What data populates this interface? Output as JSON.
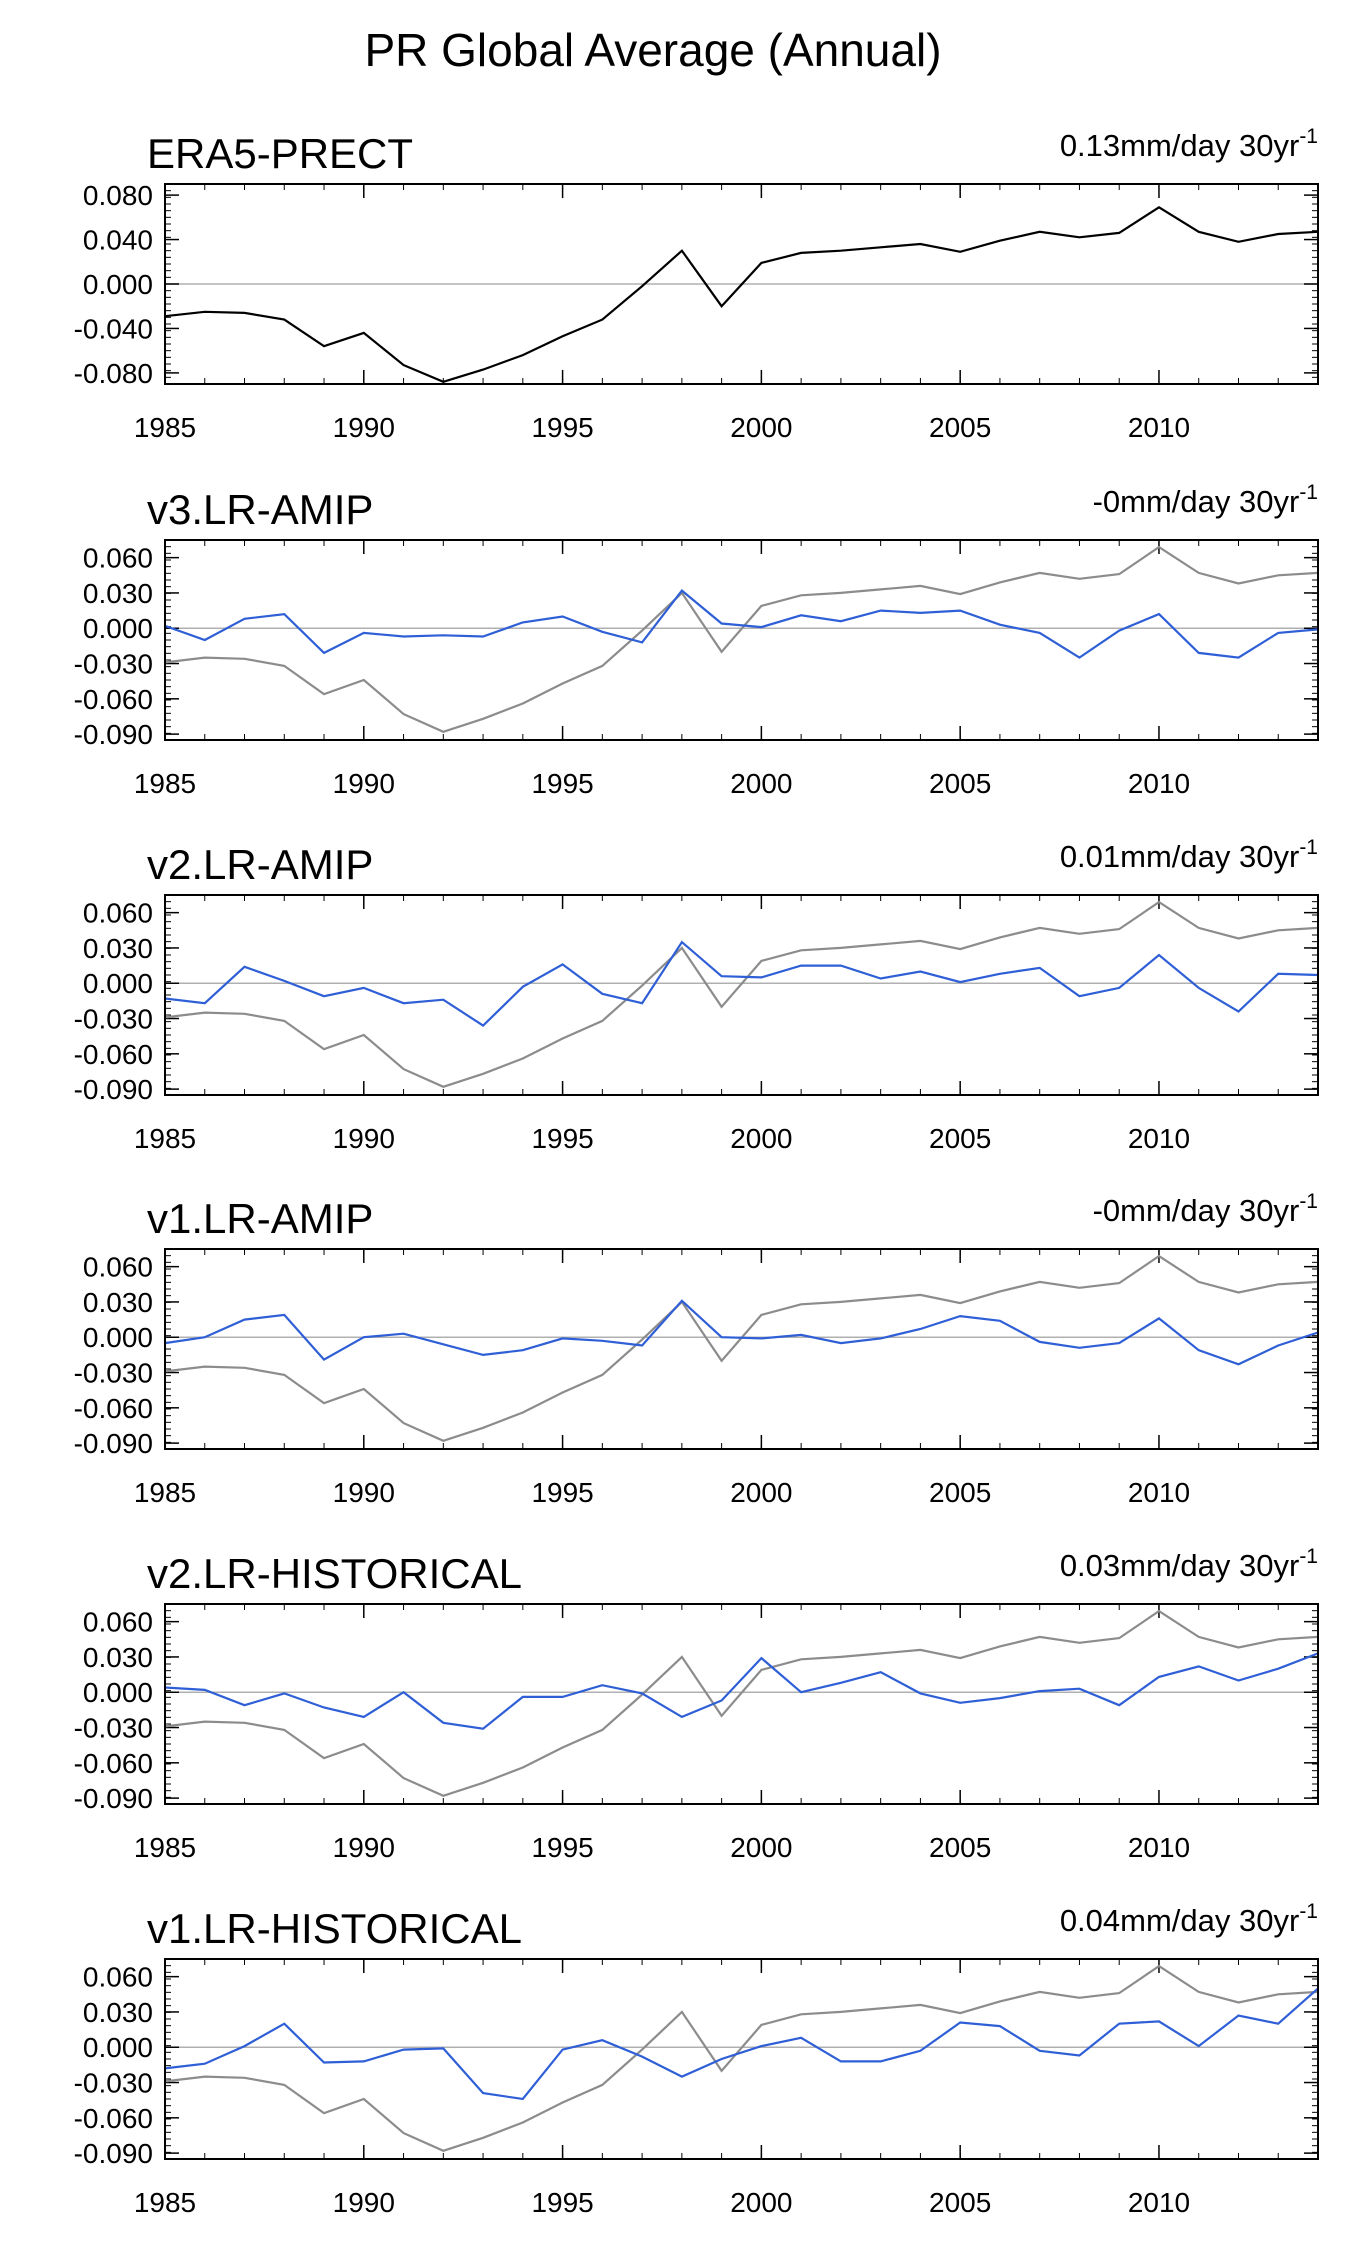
{
  "figure_title": "PR Global Average (Annual)",
  "colors": {
    "reference": "#000000",
    "reference_overlay": "#8c8c8c",
    "model": "#2f5fd6",
    "zero_line": "#b0b0b0"
  },
  "chart_data": [
    {
      "type": "line",
      "title": "ERA5-PRECT",
      "trend_text": "0.13mm/day 30yr",
      "trend_sup": "-1",
      "x": [
        1985,
        1986,
        1987,
        1988,
        1989,
        1990,
        1991,
        1992,
        1993,
        1994,
        1995,
        1996,
        1997,
        1998,
        1999,
        2000,
        2001,
        2002,
        2003,
        2004,
        2005,
        2006,
        2007,
        2008,
        2009,
        2010,
        2011,
        2012,
        2013,
        2014
      ],
      "xlim": [
        1985,
        2014
      ],
      "x_ticks": [
        "1985",
        "1990",
        "1995",
        "2000",
        "2005",
        "2010"
      ],
      "ylim": [
        -0.09,
        0.09
      ],
      "y_ticks": [
        "0.080",
        "0.040",
        "0.000",
        "-0.040",
        "-0.080"
      ],
      "series": [
        {
          "name": "ERA5",
          "role": "reference",
          "values": [
            -0.029,
            -0.025,
            -0.026,
            -0.032,
            -0.056,
            -0.044,
            -0.073,
            -0.088,
            -0.077,
            -0.064,
            -0.047,
            -0.032,
            -0.002,
            0.03,
            -0.02,
            0.019,
            0.028,
            0.03,
            0.033,
            0.036,
            0.029,
            0.039,
            0.047,
            0.042,
            0.046,
            0.069,
            0.047,
            0.038,
            0.045,
            0.047
          ]
        }
      ]
    },
    {
      "type": "line",
      "title": "v3.LR-AMIP",
      "trend_text": "-0mm/day 30yr",
      "trend_sup": "-1",
      "x": [
        1985,
        1986,
        1987,
        1988,
        1989,
        1990,
        1991,
        1992,
        1993,
        1994,
        1995,
        1996,
        1997,
        1998,
        1999,
        2000,
        2001,
        2002,
        2003,
        2004,
        2005,
        2006,
        2007,
        2008,
        2009,
        2010,
        2011,
        2012,
        2013,
        2014
      ],
      "xlim": [
        1985,
        2014
      ],
      "x_ticks": [
        "1985",
        "1990",
        "1995",
        "2000",
        "2005",
        "2010"
      ],
      "ylim": [
        -0.095,
        0.075
      ],
      "y_ticks": [
        "0.060",
        "0.030",
        "0.000",
        "-0.030",
        "-0.060",
        "-0.090"
      ],
      "series": [
        {
          "name": "ERA5",
          "role": "reference",
          "values": [
            -0.029,
            -0.025,
            -0.026,
            -0.032,
            -0.056,
            -0.044,
            -0.073,
            -0.088,
            -0.077,
            -0.064,
            -0.047,
            -0.032,
            -0.002,
            0.03,
            -0.02,
            0.019,
            0.028,
            0.03,
            0.033,
            0.036,
            0.029,
            0.039,
            0.047,
            0.042,
            0.046,
            0.069,
            0.047,
            0.038,
            0.045,
            0.047
          ]
        },
        {
          "name": "v3.LR-AMIP",
          "role": "model",
          "values": [
            0.002,
            -0.01,
            0.008,
            0.012,
            -0.021,
            -0.004,
            -0.007,
            -0.006,
            -0.007,
            0.005,
            0.01,
            -0.003,
            -0.012,
            0.032,
            0.004,
            0.001,
            0.011,
            0.006,
            0.015,
            0.013,
            0.015,
            0.003,
            -0.004,
            -0.025,
            -0.002,
            0.012,
            -0.021,
            -0.025,
            -0.004,
            -0.001
          ]
        }
      ]
    },
    {
      "type": "line",
      "title": "v2.LR-AMIP",
      "trend_text": "0.01mm/day 30yr",
      "trend_sup": "-1",
      "x": [
        1985,
        1986,
        1987,
        1988,
        1989,
        1990,
        1991,
        1992,
        1993,
        1994,
        1995,
        1996,
        1997,
        1998,
        1999,
        2000,
        2001,
        2002,
        2003,
        2004,
        2005,
        2006,
        2007,
        2008,
        2009,
        2010,
        2011,
        2012,
        2013,
        2014
      ],
      "xlim": [
        1985,
        2014
      ],
      "x_ticks": [
        "1985",
        "1990",
        "1995",
        "2000",
        "2005",
        "2010"
      ],
      "ylim": [
        -0.095,
        0.075
      ],
      "y_ticks": [
        "0.060",
        "0.030",
        "0.000",
        "-0.030",
        "-0.060",
        "-0.090"
      ],
      "series": [
        {
          "name": "ERA5",
          "role": "reference",
          "values": [
            -0.029,
            -0.025,
            -0.026,
            -0.032,
            -0.056,
            -0.044,
            -0.073,
            -0.088,
            -0.077,
            -0.064,
            -0.047,
            -0.032,
            -0.002,
            0.03,
            -0.02,
            0.019,
            0.028,
            0.03,
            0.033,
            0.036,
            0.029,
            0.039,
            0.047,
            0.042,
            0.046,
            0.069,
            0.047,
            0.038,
            0.045,
            0.047
          ]
        },
        {
          "name": "v2.LR-AMIP",
          "role": "model",
          "values": [
            -0.013,
            -0.017,
            0.014,
            0.002,
            -0.011,
            -0.004,
            -0.017,
            -0.014,
            -0.036,
            -0.003,
            0.016,
            -0.009,
            -0.017,
            0.035,
            0.006,
            0.005,
            0.015,
            0.015,
            0.004,
            0.01,
            0.001,
            0.008,
            0.013,
            -0.011,
            -0.004,
            0.024,
            -0.004,
            -0.024,
            0.008,
            0.007
          ]
        }
      ]
    },
    {
      "type": "line",
      "title": "v1.LR-AMIP",
      "trend_text": "-0mm/day 30yr",
      "trend_sup": "-1",
      "x": [
        1985,
        1986,
        1987,
        1988,
        1989,
        1990,
        1991,
        1992,
        1993,
        1994,
        1995,
        1996,
        1997,
        1998,
        1999,
        2000,
        2001,
        2002,
        2003,
        2004,
        2005,
        2006,
        2007,
        2008,
        2009,
        2010,
        2011,
        2012,
        2013,
        2014
      ],
      "xlim": [
        1985,
        2014
      ],
      "x_ticks": [
        "1985",
        "1990",
        "1995",
        "2000",
        "2005",
        "2010"
      ],
      "ylim": [
        -0.095,
        0.075
      ],
      "y_ticks": [
        "0.060",
        "0.030",
        "0.000",
        "-0.030",
        "-0.060",
        "-0.090"
      ],
      "series": [
        {
          "name": "ERA5",
          "role": "reference",
          "values": [
            -0.029,
            -0.025,
            -0.026,
            -0.032,
            -0.056,
            -0.044,
            -0.073,
            -0.088,
            -0.077,
            -0.064,
            -0.047,
            -0.032,
            -0.002,
            0.03,
            -0.02,
            0.019,
            0.028,
            0.03,
            0.033,
            0.036,
            0.029,
            0.039,
            0.047,
            0.042,
            0.046,
            0.069,
            0.047,
            0.038,
            0.045,
            0.047
          ]
        },
        {
          "name": "v1.LR-AMIP",
          "role": "model",
          "values": [
            -0.005,
            0.0,
            0.015,
            0.019,
            -0.019,
            0.0,
            0.003,
            -0.006,
            -0.015,
            -0.011,
            -0.001,
            -0.003,
            -0.007,
            0.031,
            0.0,
            -0.001,
            0.002,
            -0.005,
            -0.001,
            0.007,
            0.018,
            0.014,
            -0.004,
            -0.009,
            -0.005,
            0.016,
            -0.011,
            -0.023,
            -0.007,
            0.004
          ]
        }
      ]
    },
    {
      "type": "line",
      "title": "v2.LR-HISTORICAL",
      "trend_text": "0.03mm/day 30yr",
      "trend_sup": "-1",
      "x": [
        1985,
        1986,
        1987,
        1988,
        1989,
        1990,
        1991,
        1992,
        1993,
        1994,
        1995,
        1996,
        1997,
        1998,
        1999,
        2000,
        2001,
        2002,
        2003,
        2004,
        2005,
        2006,
        2007,
        2008,
        2009,
        2010,
        2011,
        2012,
        2013,
        2014
      ],
      "xlim": [
        1985,
        2014
      ],
      "x_ticks": [
        "1985",
        "1990",
        "1995",
        "2000",
        "2005",
        "2010"
      ],
      "ylim": [
        -0.095,
        0.075
      ],
      "y_ticks": [
        "0.060",
        "0.030",
        "0.000",
        "-0.030",
        "-0.060",
        "-0.090"
      ],
      "series": [
        {
          "name": "ERA5",
          "role": "reference",
          "values": [
            -0.029,
            -0.025,
            -0.026,
            -0.032,
            -0.056,
            -0.044,
            -0.073,
            -0.088,
            -0.077,
            -0.064,
            -0.047,
            -0.032,
            -0.002,
            0.03,
            -0.02,
            0.019,
            0.028,
            0.03,
            0.033,
            0.036,
            0.029,
            0.039,
            0.047,
            0.042,
            0.046,
            0.069,
            0.047,
            0.038,
            0.045,
            0.047
          ]
        },
        {
          "name": "v2.LR-HISTORICAL",
          "role": "model",
          "values": [
            0.004,
            0.002,
            -0.011,
            -0.001,
            -0.013,
            -0.021,
            0.0,
            -0.026,
            -0.031,
            -0.004,
            -0.004,
            0.006,
            -0.001,
            -0.021,
            -0.007,
            0.029,
            0.0,
            0.008,
            0.017,
            -0.001,
            -0.009,
            -0.005,
            0.001,
            0.003,
            -0.011,
            0.013,
            0.022,
            0.01,
            0.02,
            0.033
          ]
        }
      ]
    },
    {
      "type": "line",
      "title": "v1.LR-HISTORICAL",
      "trend_text": "0.04mm/day 30yr",
      "trend_sup": "-1",
      "x": [
        1985,
        1986,
        1987,
        1988,
        1989,
        1990,
        1991,
        1992,
        1993,
        1994,
        1995,
        1996,
        1997,
        1998,
        1999,
        2000,
        2001,
        2002,
        2003,
        2004,
        2005,
        2006,
        2007,
        2008,
        2009,
        2010,
        2011,
        2012,
        2013,
        2014
      ],
      "xlim": [
        1985,
        2014
      ],
      "x_ticks": [
        "1985",
        "1990",
        "1995",
        "2000",
        "2005",
        "2010"
      ],
      "ylim": [
        -0.095,
        0.075
      ],
      "y_ticks": [
        "0.060",
        "0.030",
        "0.000",
        "-0.030",
        "-0.060",
        "-0.090"
      ],
      "series": [
        {
          "name": "ERA5",
          "role": "reference",
          "values": [
            -0.029,
            -0.025,
            -0.026,
            -0.032,
            -0.056,
            -0.044,
            -0.073,
            -0.088,
            -0.077,
            -0.064,
            -0.047,
            -0.032,
            -0.002,
            0.03,
            -0.02,
            0.019,
            0.028,
            0.03,
            0.033,
            0.036,
            0.029,
            0.039,
            0.047,
            0.042,
            0.046,
            0.069,
            0.047,
            0.038,
            0.045,
            0.047
          ]
        },
        {
          "name": "v1.LR-HISTORICAL",
          "role": "model",
          "values": [
            -0.018,
            -0.014,
            0.001,
            0.02,
            -0.013,
            -0.012,
            -0.002,
            -0.001,
            -0.039,
            -0.044,
            -0.002,
            0.006,
            -0.008,
            -0.025,
            -0.01,
            0.001,
            0.008,
            -0.012,
            -0.012,
            -0.003,
            0.021,
            0.018,
            -0.003,
            -0.007,
            0.02,
            0.022,
            0.001,
            0.027,
            0.02,
            0.05
          ]
        }
      ]
    }
  ]
}
